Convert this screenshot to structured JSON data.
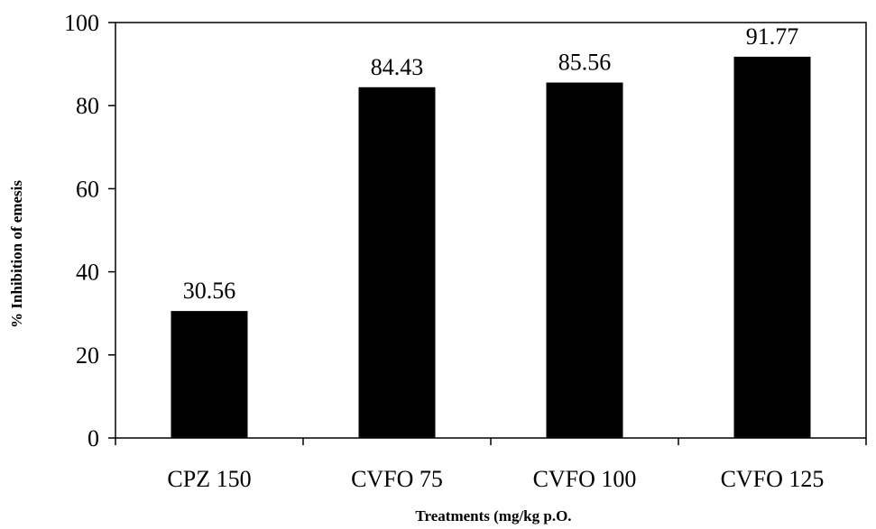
{
  "chart_data": {
    "type": "bar",
    "title": "",
    "xlabel": "Treatments (mg/kg p.O.",
    "ylabel": "% Inhibition of emesis",
    "categories": [
      "CPZ 150",
      "CVFO 75",
      "CVFO 100",
      "CVFO 125"
    ],
    "values": [
      30.56,
      84.43,
      85.56,
      91.77
    ],
    "value_labels": [
      "30.56",
      "84.43",
      "85.56",
      "91.77"
    ],
    "ylim": [
      0,
      100
    ],
    "yticks": [
      0,
      20,
      40,
      60,
      80,
      100
    ],
    "ytick_labels": [
      "0",
      "20",
      "40",
      "60",
      "80",
      "100"
    ],
    "grid": false,
    "legend": "none",
    "bar_color": "#000000",
    "axis_color": "#000000"
  }
}
